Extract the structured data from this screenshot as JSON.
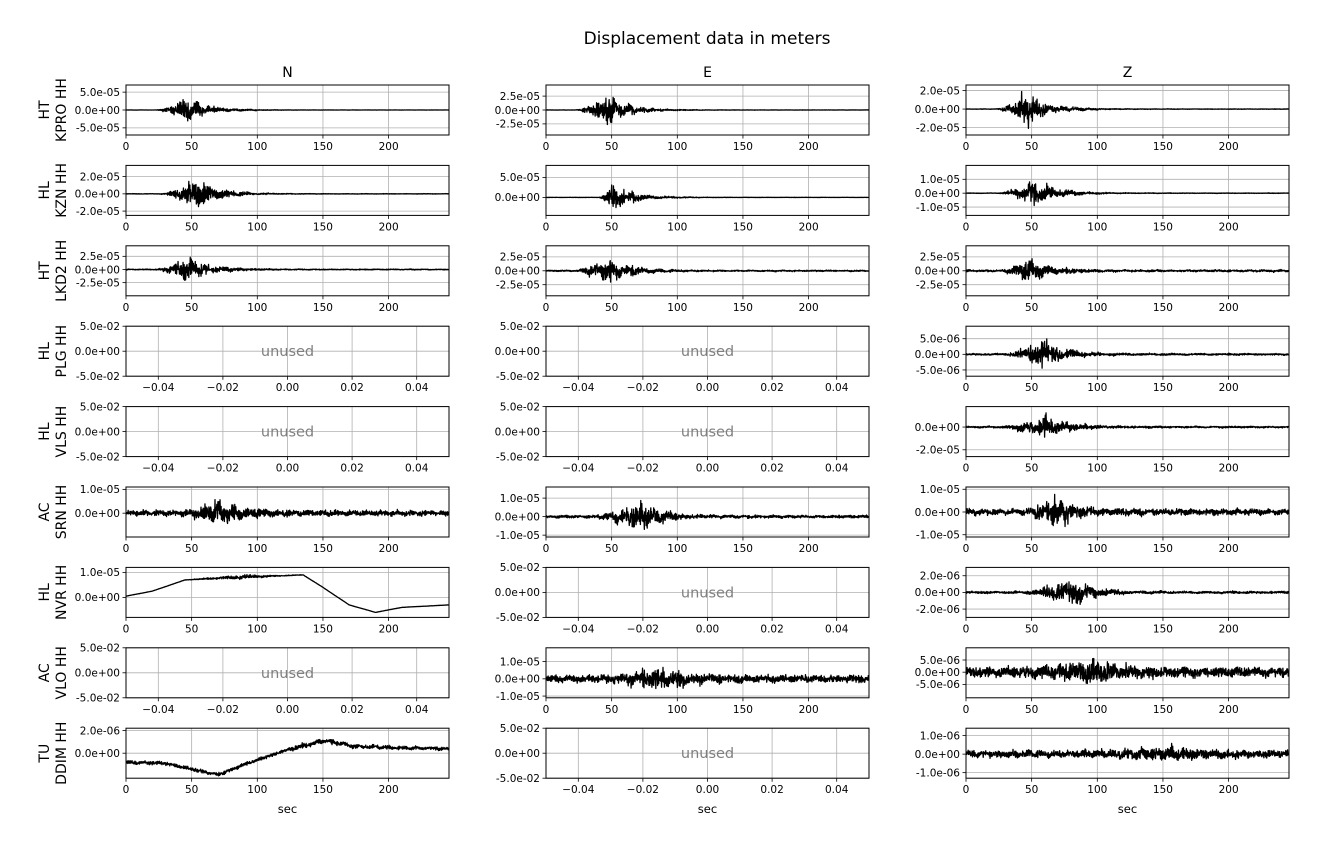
{
  "chart_data": {
    "type": "line",
    "title": "Displacement data in meters",
    "columns": [
      "N",
      "E",
      "Z"
    ],
    "xlabel": "sec",
    "grid": true,
    "line_color": "#000000",
    "unused_color": "#7f7f7f",
    "unused_label": "unused",
    "unused_xlim": [
      -0.05,
      0.05
    ],
    "unused_ylim": [
      -0.05,
      0.05
    ],
    "unused_xticks": [
      "−0.04",
      "−0.02",
      "0.00",
      "0.02",
      "0.04"
    ],
    "unused_yticks": [
      "5.0e-02",
      "0.0e+00",
      "-5.0e-02"
    ],
    "data_xlim": [
      0,
      246
    ],
    "data_xticks": [
      "0",
      "50",
      "100",
      "150",
      "200"
    ],
    "stations": [
      {
        "network": "HT",
        "station": "KPRO HH",
        "panels": [
          {
            "used": true,
            "yticks": [
              "5.0e-05",
              "0.0e+00",
              "-5.0e-05"
            ],
            "ylim": [
              -7e-05,
              7e-05
            ],
            "amp": 5.5e-05,
            "onset": 22,
            "peak": 46,
            "noise": 0.008,
            "drift": []
          },
          {
            "used": true,
            "yticks": [
              "2.5e-05",
              "0.0e+00",
              "-2.5e-05"
            ],
            "ylim": [
              -4.5e-05,
              4.5e-05
            ],
            "amp": 4e-05,
            "onset": 22,
            "peak": 47,
            "noise": 0.01,
            "drift": []
          },
          {
            "used": true,
            "yticks": [
              "2.0e-05",
              "0.0e+00",
              "-2.0e-05"
            ],
            "ylim": [
              -2.8e-05,
              2.6e-05
            ],
            "amp": 2.6e-05,
            "onset": 22,
            "peak": 47,
            "noise": 0.015,
            "drift": []
          }
        ]
      },
      {
        "network": "HL",
        "station": "KZN HH",
        "panels": [
          {
            "used": true,
            "yticks": [
              "2.0e-05",
              "0.0e+00",
              "-2.0e-05"
            ],
            "ylim": [
              -2.5e-05,
              3.3e-05
            ],
            "amp": 2.8e-05,
            "onset": 25,
            "peak": 54,
            "noise": 0.015,
            "drift": []
          },
          {
            "used": true,
            "yticks": [
              "5.0e-05",
              "0.0e+00"
            ],
            "ylim": [
              -4.5e-05,
              8e-05
            ],
            "amp": 5e-05,
            "onset": 40,
            "peak": 50,
            "noise": 0.01,
            "drift": []
          },
          {
            "used": true,
            "yticks": [
              "1.0e-05",
              "0.0e+00",
              "-1.0e-05"
            ],
            "ylim": [
              -1.6e-05,
              2e-05
            ],
            "amp": 1.5e-05,
            "onset": 25,
            "peak": 50,
            "noise": 0.02,
            "drift": []
          }
        ]
      },
      {
        "network": "HT",
        "station": "LKD2 HH",
        "panels": [
          {
            "used": true,
            "yticks": [
              "2.5e-05",
              "0.0e+00",
              "-2.5e-05"
            ],
            "ylim": [
              -5e-05,
              4.5e-05
            ],
            "amp": 3.5e-05,
            "onset": 22,
            "peak": 47,
            "noise": 0.04,
            "drift": []
          },
          {
            "used": true,
            "yticks": [
              "2.5e-05",
              "0.0e+00",
              "-2.5e-05"
            ],
            "ylim": [
              -4.5e-05,
              4.5e-05
            ],
            "amp": 3.8e-05,
            "onset": 22,
            "peak": 48,
            "noise": 0.05,
            "drift": []
          },
          {
            "used": true,
            "yticks": [
              "2.5e-05",
              "0.0e+00",
              "-2.5e-05"
            ],
            "ylim": [
              -4.5e-05,
              4.5e-05
            ],
            "amp": 3.5e-05,
            "onset": 25,
            "peak": 48,
            "noise": 0.08,
            "drift": []
          }
        ]
      },
      {
        "network": "HL",
        "station": "PLG HH",
        "panels": [
          {
            "used": false
          },
          {
            "used": false
          },
          {
            "used": true,
            "yticks": [
              "5.0e-06",
              "0.0e+00",
              "-5.0e-06"
            ],
            "ylim": [
              -7e-06,
              9e-06
            ],
            "amp": 7e-06,
            "onset": 28,
            "peak": 58,
            "noise": 0.06,
            "drift": []
          }
        ]
      },
      {
        "network": "HL",
        "station": "VLS HH",
        "panels": [
          {
            "used": false
          },
          {
            "used": false
          },
          {
            "used": true,
            "yticks": [
              "0.0e+00",
              "-2.0e-05"
            ],
            "ylim": [
              -2.6e-05,
              1.8e-05
            ],
            "amp": 1.6e-05,
            "onset": 25,
            "peak": 60,
            "noise": 0.07,
            "drift": []
          }
        ]
      },
      {
        "network": "AC",
        "station": "SRN HH",
        "panels": [
          {
            "used": true,
            "yticks": [
              "1.0e-05",
              "0.0e+00"
            ],
            "ylim": [
              -1e-05,
              1.1e-05
            ],
            "amp": 9e-06,
            "onset": 40,
            "peak": 70,
            "noise": 0.2,
            "drift": []
          },
          {
            "used": true,
            "yticks": [
              "1.0e-05",
              "0.0e+00",
              "-1.0e-05"
            ],
            "ylim": [
              -1.1e-05,
              1.6e-05
            ],
            "amp": 1.2e-05,
            "onset": 35,
            "peak": 72,
            "noise": 0.1,
            "drift": []
          },
          {
            "used": true,
            "yticks": [
              "1.0e-05",
              "0.0e+00",
              "-1.0e-05"
            ],
            "ylim": [
              -1.1e-05,
              1.1e-05
            ],
            "amp": 1e-05,
            "onset": 40,
            "peak": 68,
            "noise": 0.2,
            "drift": []
          }
        ]
      },
      {
        "network": "HL",
        "station": "NVR HH",
        "panels": [
          {
            "used": true,
            "yticks": [
              "1.0e-05",
              "0.0e+00"
            ],
            "ylim": [
              -8e-06,
              1.2e-05
            ],
            "amp": 1.5e-06,
            "onset": 40,
            "peak": 90,
            "noise": 0.05,
            "drift": [
              [
                0,
                5e-07
              ],
              [
                20,
                2.5e-06
              ],
              [
                45,
                7e-06
              ],
              [
                80,
                8e-06
              ],
              [
                110,
                8.5e-06
              ],
              [
                135,
                9e-06
              ],
              [
                150,
                4e-06
              ],
              [
                170,
                -3e-06
              ],
              [
                190,
                -6e-06
              ],
              [
                210,
                -4e-06
              ],
              [
                246,
                -3e-06
              ]
            ]
          },
          {
            "used": false
          },
          {
            "used": true,
            "yticks": [
              "2.0e-06",
              "0.0e+00",
              "-2.0e-06"
            ],
            "ylim": [
              -3e-06,
              3e-06
            ],
            "amp": 2.5e-06,
            "onset": 42,
            "peak": 80,
            "noise": 0.08,
            "drift": []
          }
        ]
      },
      {
        "network": "AC",
        "station": "VLO HH",
        "panels": [
          {
            "used": false
          },
          {
            "used": true,
            "yticks": [
              "1.0e-05",
              "0.0e+00",
              "-1.0e-05"
            ],
            "ylim": [
              -1.1e-05,
              1.8e-05
            ],
            "amp": 1.1e-05,
            "onset": 30,
            "peak": 95,
            "noise": 0.3,
            "drift": []
          },
          {
            "used": true,
            "yticks": [
              "5.0e-06",
              "0.0e+00",
              "-5.0e-06"
            ],
            "ylim": [
              -1.05e-05,
              1e-05
            ],
            "amp": 8e-06,
            "onset": 30,
            "peak": 100,
            "noise": 0.4,
            "drift": []
          }
        ]
      },
      {
        "network": "TU",
        "station": "DDIM HH",
        "panels": [
          {
            "used": true,
            "yticks": [
              "2.0e-06",
              "0.0e+00"
            ],
            "ylim": [
              -2.2e-06,
              2.2e-06
            ],
            "amp": 4e-07,
            "onset": 100,
            "peak": 155,
            "noise": 0.6,
            "drift": [
              [
                0,
                -8e-07
              ],
              [
                30,
                -9e-07
              ],
              [
                50,
                -1.4e-06
              ],
              [
                70,
                -1.9e-06
              ],
              [
                95,
                -8e-07
              ],
              [
                120,
                2e-07
              ],
              [
                150,
                1.1e-06
              ],
              [
                175,
                6e-07
              ],
              [
                200,
                5e-07
              ],
              [
                246,
                4e-07
              ]
            ]
          },
          {
            "used": false
          },
          {
            "used": true,
            "yticks": [
              "1.0e-06",
              "0.0e+00",
              "-1.0e-06"
            ],
            "ylim": [
              -1.3e-06,
              1.4e-06
            ],
            "amp": 6e-07,
            "onset": 80,
            "peak": 160,
            "noise": 0.5,
            "drift": []
          }
        ]
      }
    ]
  }
}
